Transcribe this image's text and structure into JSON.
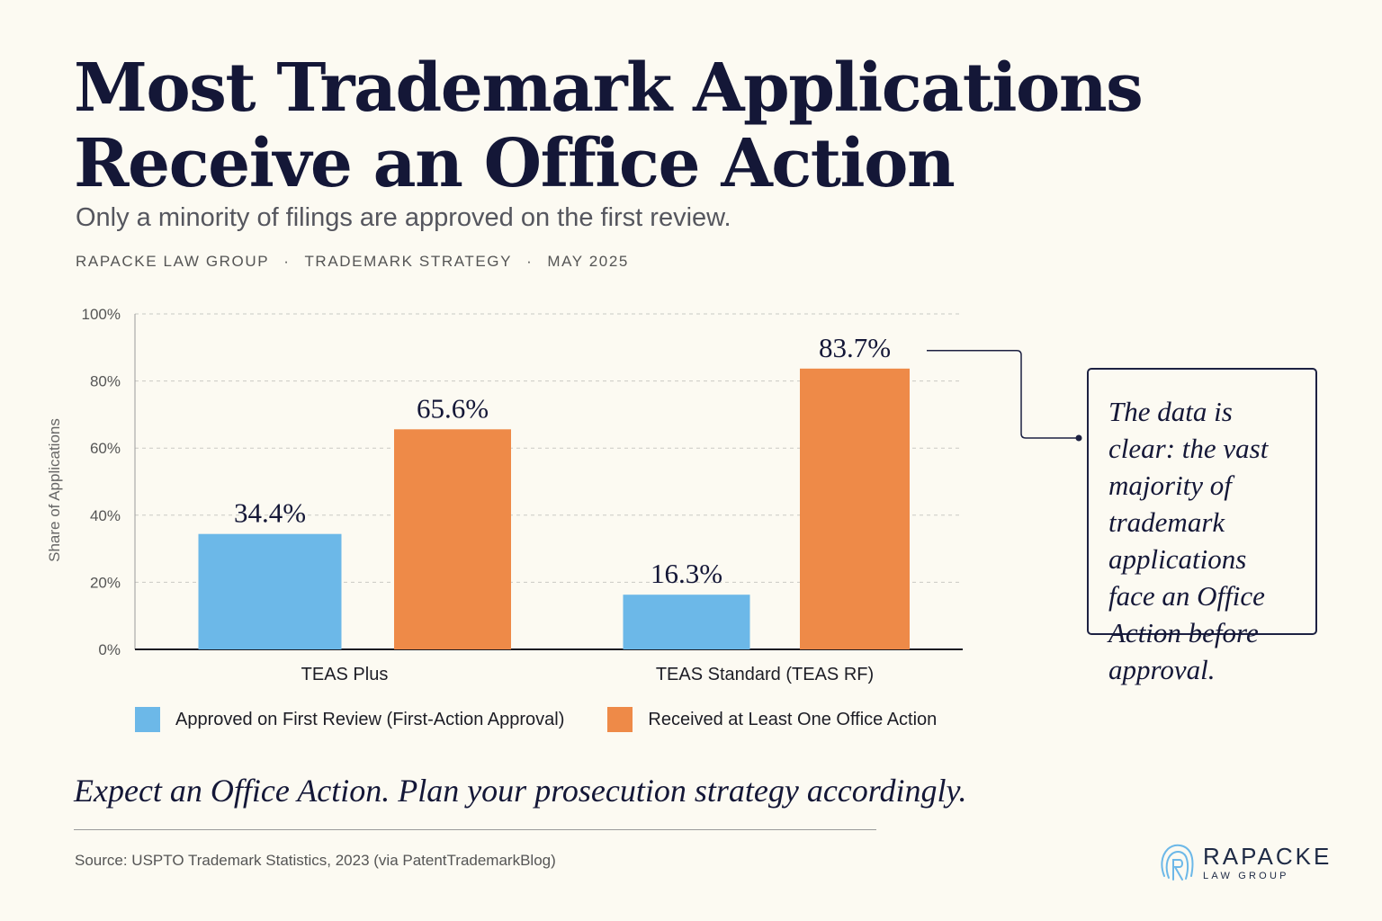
{
  "title_line1": "Most Trademark Applications",
  "title_line2": "Receive an Office Action",
  "subtitle": "Only a minority of filings are approved on the first review.",
  "meta": [
    "RAPACKE LAW GROUP",
    "TRADEMARK STRATEGY",
    "MAY 2025"
  ],
  "meta_separator": "·",
  "callout": "The data is clear: the vast majority of trademark applications face an Office Action before approval.",
  "tagline": "Expect an Office Action. Plan your prosecution strategy accordingly.",
  "source": "Source: USPTO Trademark Statistics, 2023 (via PatentTrademarkBlog)",
  "logo": {
    "name": "RAPACKE",
    "sub": "LAW GROUP"
  },
  "colors": {
    "approved": "#6cb8e8",
    "office_action": "#ee8a48",
    "ink": "#141737"
  },
  "chart_data": {
    "type": "bar",
    "categories": [
      "TEAS Plus",
      "TEAS Standard (TEAS RF)"
    ],
    "series": [
      {
        "name": "Approved on First Review (First-Action Approval)",
        "values": [
          34.4,
          16.3
        ],
        "labels": [
          "34.4%",
          "16.3%"
        ]
      },
      {
        "name": "Received at Least One Office Action",
        "values": [
          65.6,
          83.7
        ],
        "labels": [
          "65.6%",
          "83.7%"
        ]
      }
    ],
    "ylabel": "Share of Applications",
    "ylim": [
      0,
      100
    ],
    "yticks": [
      0,
      20,
      40,
      60,
      80,
      100
    ],
    "ytick_labels": [
      "0%",
      "20%",
      "40%",
      "60%",
      "80%",
      "100%"
    ],
    "grid": true,
    "legend": "bottom"
  }
}
